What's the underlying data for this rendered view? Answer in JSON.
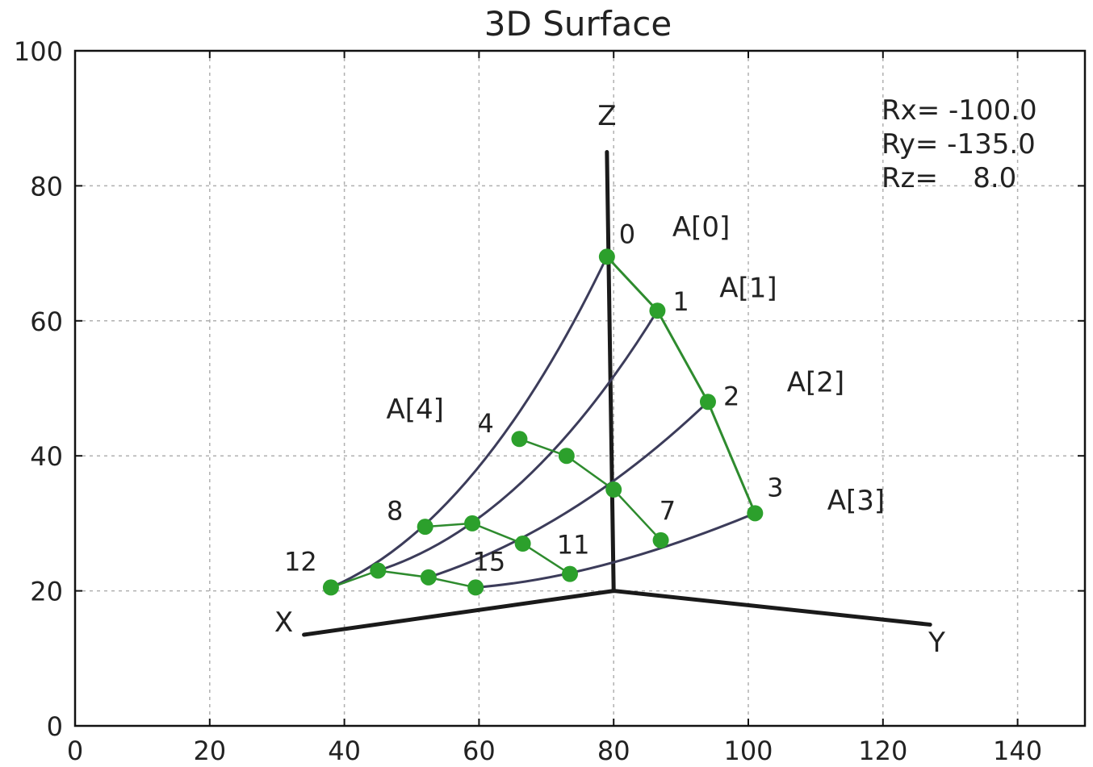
{
  "chart_data": {
    "type": "line",
    "title": "3D Surface",
    "xlabel": "",
    "ylabel": "",
    "xlim": [
      0,
      150
    ],
    "ylim": [
      0,
      100
    ],
    "xticks": [
      0,
      20,
      40,
      60,
      80,
      100,
      120,
      140
    ],
    "yticks": [
      0,
      20,
      40,
      60,
      80,
      100
    ],
    "xtick_labels": [
      "0",
      "20",
      "40",
      "60",
      "80",
      "100",
      "120",
      "140"
    ],
    "ytick_labels": [
      "0",
      "20",
      "40",
      "60",
      "80",
      "100"
    ],
    "grid": true,
    "rotation": {
      "rx": "Rx= -100.0",
      "ry": "Ry= -135.0",
      "rz": "Rz=    8.0"
    },
    "axes3d": {
      "origin": [
        80,
        20
      ],
      "z_axis": {
        "label": "Z",
        "end": [
          79,
          85
        ],
        "label_pos": [
          79,
          89
        ]
      },
      "x_axis": {
        "label": "X",
        "end": [
          34,
          13.5
        ],
        "label_pos": [
          31,
          14
        ]
      },
      "y_axis": {
        "label": "Y",
        "end": [
          127,
          15
        ],
        "label_pos": [
          128,
          11
        ]
      }
    },
    "colors": {
      "points": "#2ca02c",
      "green_lines": "#2e8b2e",
      "surface_curves": "#3c3c5a",
      "axes": "#1a1a1a",
      "grid": "#b0b0b0"
    },
    "points": [
      {
        "label": "0",
        "x": 79,
        "y": 69.5
      },
      {
        "label": "1",
        "x": 86.5,
        "y": 61.5
      },
      {
        "label": "2",
        "x": 94,
        "y": 48
      },
      {
        "label": "3",
        "x": 101,
        "y": 31.5
      },
      {
        "label": "4",
        "x": 66,
        "y": 42.5
      },
      {
        "label": "",
        "x": 73,
        "y": 40
      },
      {
        "label": "",
        "x": 80,
        "y": 35
      },
      {
        "label": "7",
        "x": 87,
        "y": 27.5
      },
      {
        "label": "8",
        "x": 52,
        "y": 29.5
      },
      {
        "label": "",
        "x": 59,
        "y": 30
      },
      {
        "label": "",
        "x": 66.5,
        "y": 27
      },
      {
        "label": "11",
        "x": 73.5,
        "y": 22.5
      },
      {
        "label": "12",
        "x": 38,
        "y": 20.5
      },
      {
        "label": "",
        "x": 45,
        "y": 23
      },
      {
        "label": "",
        "x": 52.5,
        "y": 22
      },
      {
        "label": "15",
        "x": 59.5,
        "y": 20.5
      }
    ],
    "point_label_pos": {
      "0": [
        82,
        71.5
      ],
      "1": [
        90,
        61.5
      ],
      "2": [
        97.5,
        47.5
      ],
      "3": [
        104,
        34
      ],
      "4": [
        61,
        43.5
      ],
      "7": [
        88,
        30.5
      ],
      "8": [
        47.5,
        30.5
      ],
      "11": [
        74,
        25.5
      ],
      "12": [
        33.5,
        23
      ],
      "15": [
        61.5,
        23
      ]
    },
    "annotations": [
      {
        "text": "A[0]",
        "x": 93,
        "y": 72.5
      },
      {
        "text": "A[1]",
        "x": 100,
        "y": 63.5
      },
      {
        "text": "A[2]",
        "x": 110,
        "y": 49.5
      },
      {
        "text": "A[3]",
        "x": 116,
        "y": 32
      },
      {
        "text": "A[4]",
        "x": 50.5,
        "y": 45.5
      }
    ],
    "green_polylines": [
      [
        0,
        1,
        2,
        3
      ],
      [
        4,
        5,
        6,
        7
      ],
      [
        8,
        9,
        10,
        11
      ],
      [
        12,
        13,
        14,
        15
      ]
    ],
    "surface_curves": [
      {
        "from": 0,
        "to": 12,
        "ctrl": [
          60,
          30
        ]
      },
      {
        "from": 1,
        "to": 13,
        "ctrl": [
          67,
          30
        ]
      },
      {
        "from": 2,
        "to": 14,
        "ctrl": [
          74,
          29
        ]
      },
      {
        "from": 3,
        "to": 15,
        "ctrl": [
          78,
          22
        ]
      }
    ]
  }
}
